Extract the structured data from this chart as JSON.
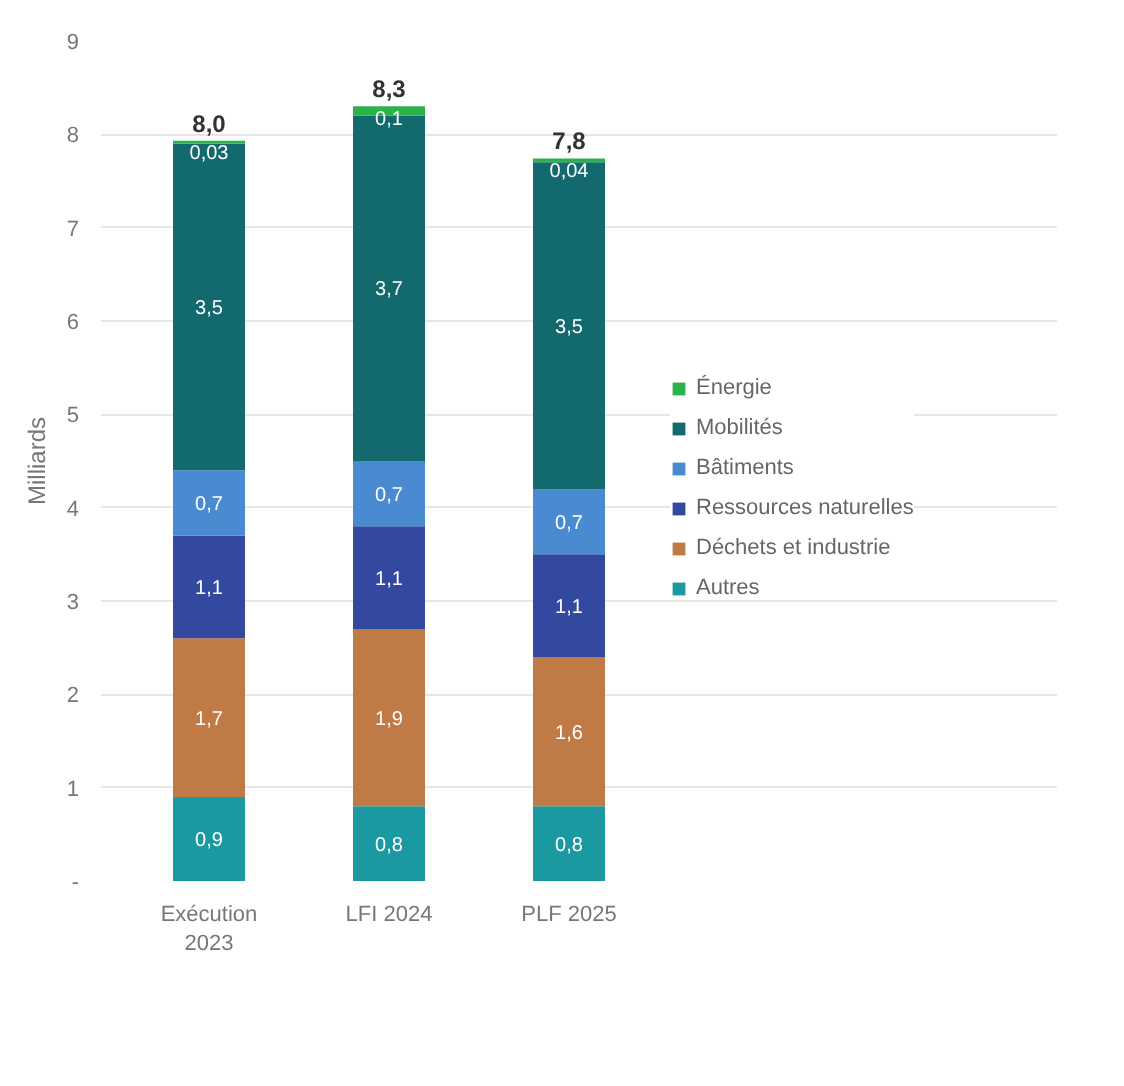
{
  "chart_data": {
    "type": "bar",
    "stacked": true,
    "ylabel": "Milliards",
    "categories": [
      "Exécution 2023",
      "LFI 2024",
      "PLF 2025"
    ],
    "series": [
      {
        "name": "Autres",
        "color": "#1a9aa0",
        "values": [
          0.9,
          0.8,
          0.8
        ],
        "value_labels": [
          "0,9",
          "0,8",
          "0,8"
        ]
      },
      {
        "name": "Déchets et industrie",
        "color": "#c07a45",
        "values": [
          1.7,
          1.9,
          1.6
        ],
        "value_labels": [
          "1,7",
          "1,9",
          "1,6"
        ]
      },
      {
        "name": "Ressources naturelles",
        "color": "#3349a0",
        "values": [
          1.1,
          1.1,
          1.1
        ],
        "value_labels": [
          "1,1",
          "1,1",
          "1,1"
        ]
      },
      {
        "name": "Bâtiments",
        "color": "#4a8ad0",
        "values": [
          0.7,
          0.7,
          0.7
        ],
        "value_labels": [
          "0,7",
          "0,7",
          "0,7"
        ]
      },
      {
        "name": "Mobilités",
        "color": "#136a6e",
        "values": [
          3.5,
          3.7,
          3.5
        ],
        "value_labels": [
          "3,5",
          "3,7",
          "3,5"
        ]
      },
      {
        "name": "Énergie",
        "color": "#2bb24a",
        "values": [
          0.03,
          0.1,
          0.04
        ],
        "value_labels": [
          "0,03",
          "0,1",
          "0,04"
        ]
      }
    ],
    "totals": [
      "8,0",
      "8,3",
      "7,8"
    ],
    "ylim": [
      0,
      9
    ],
    "yticks": [
      {
        "value": 0,
        "label": "-"
      },
      1,
      2,
      3,
      4,
      5,
      6,
      7,
      8,
      9
    ],
    "grid": "y",
    "legend": "right"
  }
}
